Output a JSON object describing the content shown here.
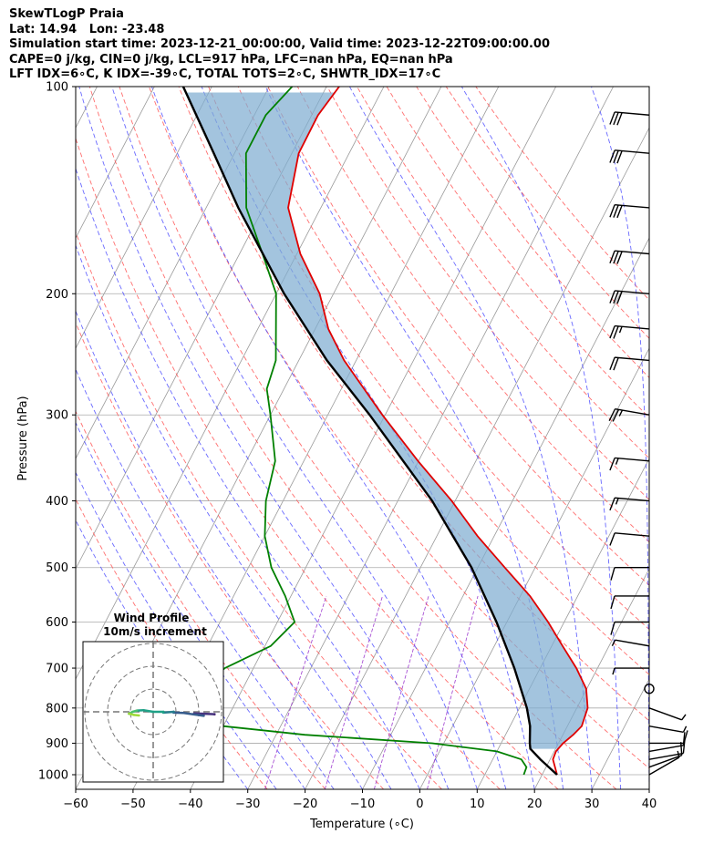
{
  "header": {
    "title": "SkewTLogP Praia",
    "location": "Lat: 14.94   Lon: -23.48",
    "times": "Simulation start time: 2023-12-21_00:00:00, Valid time: 2023-12-22T09:00:00.00",
    "indices1": "CAPE=0 j/kg, CIN=0 j/kg, LCL=917 hPa, LFC=nan hPa, EQ=nan hPa",
    "indices2": "LFT IDX=6∘C, K IDX=-39∘C, TOTAL TOTS=2∘C, SHWTR_IDX=17∘C"
  },
  "inset": {
    "title": "Wind Profile",
    "subtitle": "10m/s increment"
  },
  "colors": {
    "temperature": "#e00000",
    "dewpoint": "#008000",
    "parcel": "#000000",
    "cin_fill": "#7fadd1",
    "dry_adiabat": "#ff5555",
    "moist_adiabat": "#4444ff",
    "mixing_ratio": "#9933cc",
    "isotherm": "#999999"
  },
  "chart_data": {
    "type": "line",
    "xlabel": "Temperature (∘C)",
    "ylabel": "Pressure (hPa)",
    "xlim": [
      -60,
      40
    ],
    "ylim": [
      1050,
      100
    ],
    "yscale": "log",
    "grid": true,
    "x_ticks": [
      -60,
      -50,
      -40,
      -30,
      -20,
      -10,
      0,
      10,
      20,
      30,
      40
    ],
    "y_ticks": [
      100,
      200,
      300,
      400,
      500,
      600,
      700,
      800,
      900,
      1000
    ],
    "series": [
      {
        "key": "temperature",
        "p": [
          1000,
          950,
          925,
          900,
          875,
          850,
          800,
          750,
          700,
          650,
          600,
          550,
          500,
          450,
          400,
          350,
          300,
          250,
          225,
          200,
          175,
          150,
          125,
          110,
          100
        ],
        "T": [
          22.6,
          20.5,
          20.3,
          20.8,
          21.8,
          22.5,
          21.9,
          19.9,
          16.3,
          11.9,
          7.2,
          1.7,
          -5.3,
          -12.9,
          -20.6,
          -30.1,
          -40.5,
          -52.1,
          -57.7,
          -62.4,
          -69.4,
          -75.7,
          -78.8,
          -78.9,
          -77.8
        ]
      },
      {
        "key": "dewpoint",
        "p": [
          1000,
          975,
          950,
          925,
          900,
          875,
          850,
          800,
          750,
          700,
          650,
          600,
          550,
          500,
          450,
          400,
          350,
          300,
          275,
          250,
          200,
          175,
          150,
          125,
          110,
          100
        ],
        "Td": [
          16.8,
          16.6,
          15.0,
          10.0,
          -2.0,
          -25.0,
          -40.0,
          -45.0,
          -47.0,
          -45.0,
          -39.0,
          -37.0,
          -41.0,
          -46.0,
          -50.0,
          -53.0,
          -55.0,
          -60.0,
          -63.0,
          -64.0,
          -70.0,
          -76.0,
          -83.0,
          -88.0,
          -88.0,
          -86.0
        ]
      },
      {
        "key": "parcel",
        "p": [
          1000,
          950,
          917,
          900,
          850,
          800,
          700,
          600,
          500,
          400,
          300,
          250,
          200,
          150,
          125,
          100
        ],
        "T": [
          22.6,
          18.3,
          15.6,
          15.0,
          13.5,
          11.3,
          5.5,
          -1.8,
          -11.1,
          -24.0,
          -42.7,
          -55.1,
          -68.6,
          -84.4,
          -93.6,
          -105.0
        ]
      }
    ],
    "shaded_region": "between parcel and temperature (CIN)",
    "wind_barbs": {
      "p": [
        1000,
        975,
        950,
        925,
        900,
        850,
        800,
        750,
        700,
        650,
        600,
        550,
        500,
        450,
        400,
        350,
        300,
        250,
        225,
        200,
        175,
        150,
        125,
        110
      ],
      "speed_kt": [
        8,
        10,
        12,
        12,
        10,
        8,
        5,
        0,
        5,
        5,
        10,
        10,
        10,
        10,
        15,
        15,
        25,
        20,
        25,
        30,
        30,
        30,
        30,
        30
      ],
      "dir_deg": [
        60,
        70,
        80,
        80,
        90,
        100,
        110,
        0,
        270,
        280,
        270,
        270,
        270,
        275,
        275,
        275,
        280,
        275,
        275,
        275,
        275,
        275,
        275,
        275
      ]
    }
  }
}
